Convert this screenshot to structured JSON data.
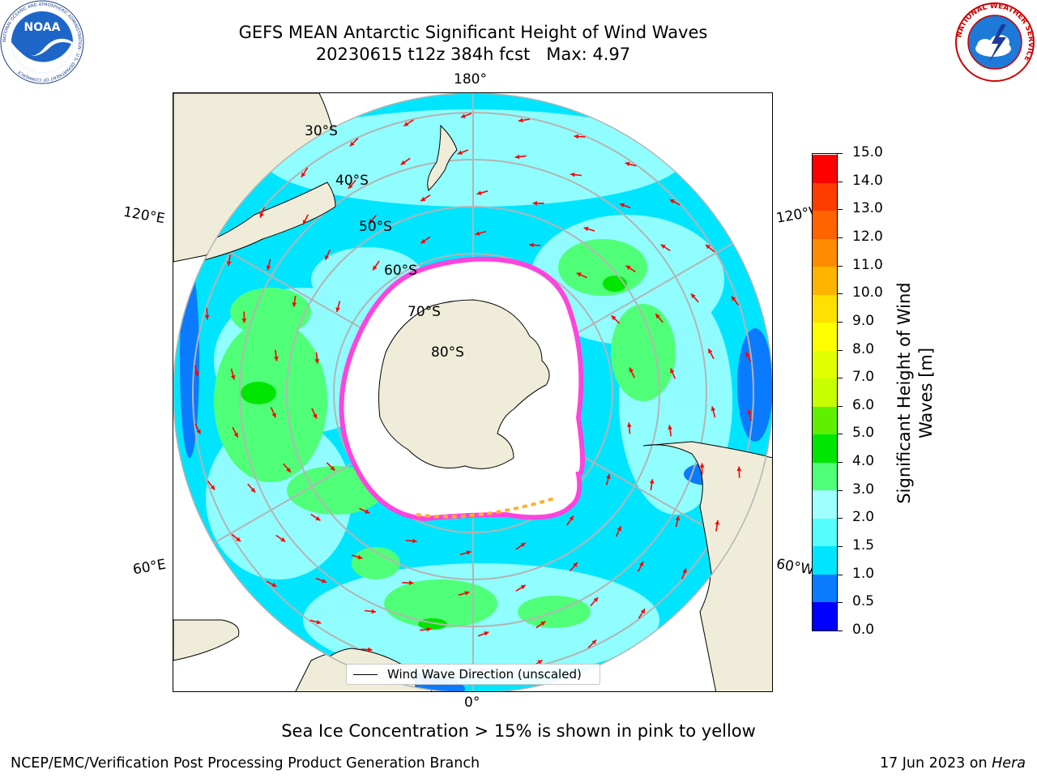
{
  "title": {
    "line1": "GEFS MEAN Antarctic Significant Height of Wind Waves",
    "line2": "20230615 t12z 384h fcst   Max: 4.97"
  },
  "logos": {
    "left": {
      "text": "NOAA",
      "ring_text": "NATIONAL OCEANIC AND ATMOSPHERIC ADMINISTRATION · U.S. DEPARTMENT OF COMMERCE"
    },
    "right": {
      "ring_text": "NATIONAL WEATHER SERVICE"
    }
  },
  "map": {
    "longitude_labels": {
      "top": "180°",
      "bottom": "0°",
      "upper_left": "120°E",
      "upper_right": "120°W",
      "lower_left": "60°E",
      "lower_right": "60°W"
    },
    "latitude_labels": [
      "30°S",
      "40°S",
      "50°S",
      "60°S",
      "70°S",
      "80°S"
    ],
    "legend_label": "Wind Wave Direction (unscaled)",
    "colors": {
      "land": "#efedd9",
      "ice": "#ffffff",
      "grid": "#b4b4b4",
      "arrow": "#ff0000",
      "sea_ice_pink": "#ff44dd",
      "sea_ice_orange": "#ffb030"
    }
  },
  "colorbar": {
    "label_line1": "Significant Height of Wind",
    "label_line2": "Waves [m]",
    "ticks": [
      "0.0",
      "0.5",
      "1.0",
      "1.5",
      "2.0",
      "3.0",
      "4.0",
      "5.0",
      "6.0",
      "7.0",
      "8.0",
      "9.0",
      "10.0",
      "11.0",
      "12.0",
      "13.0",
      "14.0",
      "15.0"
    ],
    "colors": [
      "#0000ff",
      "#0a7bff",
      "#00e5ff",
      "#55ffff",
      "#a0ffff",
      "#50ff78",
      "#00e600",
      "#5ef000",
      "#c8ff00",
      "#e0ff00",
      "#ffff00",
      "#ffe000",
      "#ffb400",
      "#ff8c00",
      "#ff6400",
      "#ff3c00",
      "#ff0000"
    ]
  },
  "caption": "Sea Ice Concentration > 15% is shown in pink to yellow",
  "footer": {
    "left": "NCEP/EMC/Verification Post Processing Product Generation Branch",
    "right_prefix": "17 Jun 2023 on ",
    "right_italic": "Hera"
  }
}
